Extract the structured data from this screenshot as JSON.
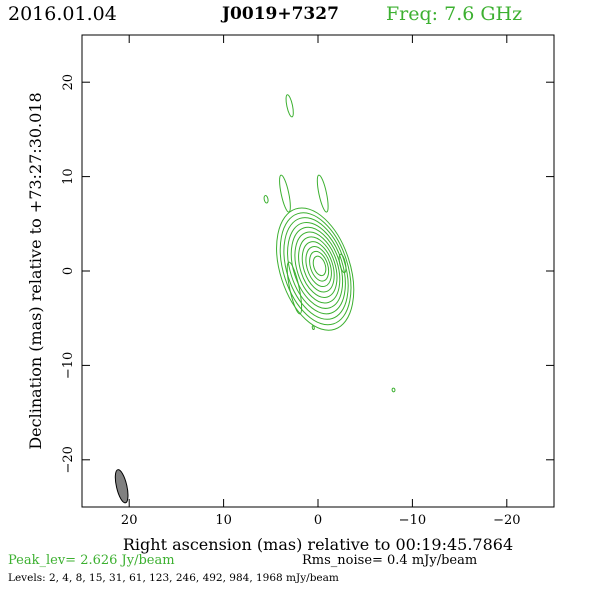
{
  "header": {
    "date": "2016.01.04",
    "source": "J0019+7327",
    "freq": "Freq: 7.6 GHz"
  },
  "colors": {
    "contour": "#3cb030",
    "beam": "#808080",
    "text": "#000000"
  },
  "footer": {
    "peak": "Peak_lev=  2.626 Jy/beam",
    "rms": "Rms_noise=  0.4 mJy/beam",
    "levels": "Levels:   2,    4,    8,   15,   31,   61,  123,  246,  492,  984,  1968  mJy/beam"
  },
  "chart_data": {
    "type": "contour",
    "xlabel": "Right ascension (mas) relative to 00:19:45.7864",
    "ylabel": "Declination (mas) relative to +73:27:30.018",
    "xlim": [
      25,
      -25
    ],
    "ylim": [
      -25,
      25
    ],
    "xticks": [
      20,
      10,
      0,
      -10,
      -20
    ],
    "xtick_labels": [
      "20",
      "10",
      "0",
      "−10",
      "−20"
    ],
    "yticks": [
      20,
      10,
      0,
      -10,
      -20
    ],
    "ytick_labels": [
      "20",
      "10",
      "0",
      "−10",
      "−20"
    ],
    "contour_levels_mJy": [
      2,
      4,
      8,
      15,
      31,
      61,
      123,
      246,
      492,
      984,
      1968
    ],
    "core": {
      "x": 0.3,
      "y": 0.2,
      "position_angle_deg": -18
    },
    "beam": {
      "x": 20.8,
      "y": -22.8,
      "major": 3.6,
      "minor": 1.1,
      "position_angle_deg": 13
    },
    "features": [
      {
        "x": 3.0,
        "y": 17.5,
        "w": 0.3,
        "h": 1.2
      },
      {
        "x": 3.5,
        "y": 8.2,
        "w": 0.4,
        "h": 2.0
      },
      {
        "x": -0.5,
        "y": 8.2,
        "w": 0.4,
        "h": 2.0
      },
      {
        "x": 5.5,
        "y": 7.6,
        "w": 0.2,
        "h": 0.4
      },
      {
        "x": -2.6,
        "y": 0.8,
        "w": 0.3,
        "h": 1.0
      },
      {
        "x": -8.0,
        "y": -12.6,
        "w": 0.15,
        "h": 0.2
      },
      {
        "x": 2.5,
        "y": -1.8,
        "w": 0.5,
        "h": 2.8
      },
      {
        "x": 0.5,
        "y": -6.0,
        "w": 0.1,
        "h": 0.2
      }
    ]
  }
}
